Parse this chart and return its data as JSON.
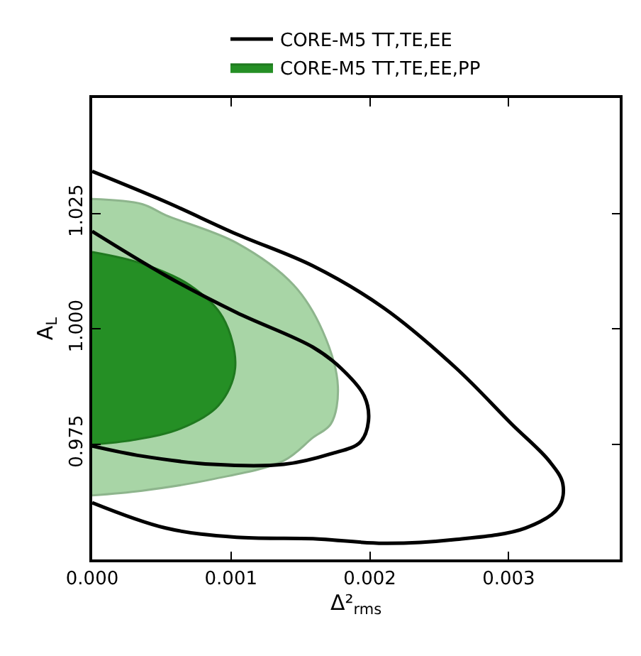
{
  "chart_data": {
    "type": "area",
    "xlabel": "Δ²$_{rms}$",
    "ylabel": "A$_{L}$",
    "xlim": [
      0,
      0.0038
    ],
    "ylim": [
      0.95,
      1.05
    ],
    "xticks": [
      {
        "value": 0,
        "label": "0.000"
      },
      0.001,
      0.002,
      0.003
    ],
    "yticks": [
      {
        "value": 0.975,
        "label": "0.975"
      },
      {
        "value": 1.0,
        "label": "1.000"
      },
      1.025
    ],
    "legend": "top",
    "series": [
      {
        "color": "#a8d5a6",
        "x": [
          0,
          0.00036,
          0.00053,
          0.00104,
          0.00145,
          0.00166,
          0.00177,
          0.00172,
          0.00159,
          0.00138,
          0.00087,
          0.00036,
          0
        ],
        "values": [
          1.0281,
          1.027,
          1.0246,
          1.0186,
          1.0095,
          0.9995,
          0.9875,
          0.9794,
          0.9764,
          0.9714,
          0.9674,
          0.9649,
          0.9639
        ]
      },
      {
        "name": "CORE-M5 TT,TE,EE,PP",
        "color": "#258f25",
        "x": [
          0,
          0.00036,
          0.0007,
          0.00094,
          0.00103,
          0.00091,
          0.00064,
          0.0003,
          0
        ],
        "values": [
          1.0166,
          1.0141,
          1.0095,
          1.0025,
          0.9915,
          0.9834,
          0.9784,
          0.9759,
          0.9749
        ]
      },
      {
        "type": "line",
        "name": "CORE-M5 TT,TE,EE",
        "color": "#000000",
        "x": [
          0,
          0.00053,
          0.00104,
          0.00159,
          0.0021,
          0.00262,
          0.00302,
          0.00329,
          0.00339,
          0.00336,
          0.00312,
          0.00261,
          0.0021,
          0.00159,
          0.00104,
          0.00053,
          0
        ],
        "values": [
          1.0341,
          1.0275,
          1.0205,
          1.0136,
          1.0045,
          0.9915,
          0.9794,
          0.9714,
          0.9664,
          0.9613,
          0.9568,
          0.9543,
          0.9535,
          0.9545,
          0.9548,
          0.9568,
          0.9623
        ]
      },
      {
        "type": "line",
        "color": "#000000",
        "x": [
          0,
          0.00053,
          0.00104,
          0.00159,
          0.00179,
          0.00196,
          0.00199,
          0.00193,
          0.00172,
          0.00138,
          0.00087,
          0.00036,
          0
        ],
        "values": [
          1.0211,
          1.0115,
          1.0035,
          0.996,
          0.9915,
          0.9854,
          0.98,
          0.9754,
          0.9729,
          0.9706,
          0.9706,
          0.9724,
          0.9746
        ]
      }
    ]
  }
}
